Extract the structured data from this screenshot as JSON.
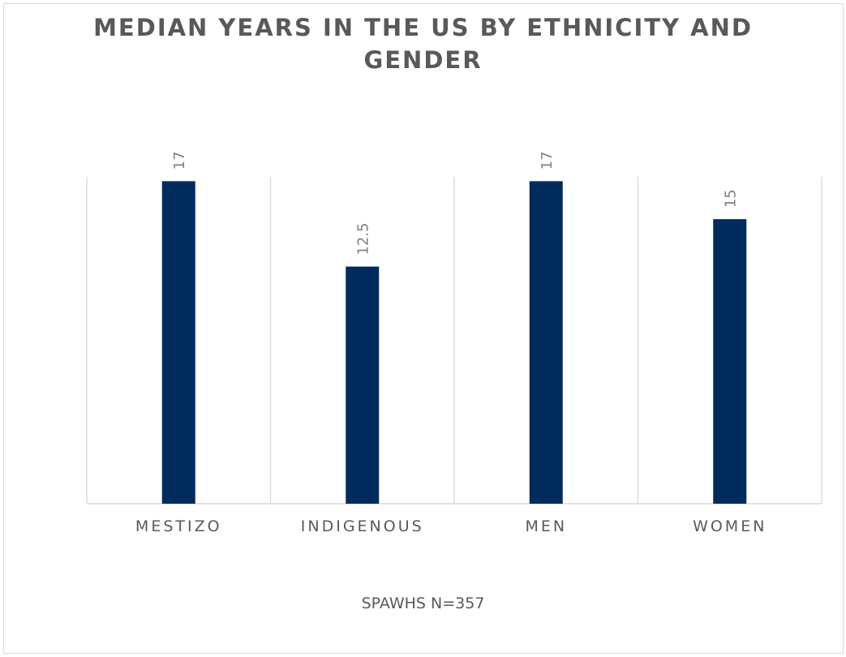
{
  "chart_data": {
    "type": "bar",
    "title": "MEDIAN YEARS IN THE US BY ETHNICITY AND GENDER",
    "categories": [
      "MESTIZO",
      "INDIGENOUS",
      "MEN",
      "WOMEN"
    ],
    "values": [
      17,
      12.5,
      17,
      15
    ],
    "data_labels": [
      "17",
      "12.5",
      "17",
      "15"
    ],
    "xlabel": "",
    "ylabel": "",
    "ylim": [
      0,
      18
    ],
    "grid": "vertical category separators",
    "legend": "none",
    "bar_color": "#002b5c",
    "note": "SPAWHS N=357"
  }
}
